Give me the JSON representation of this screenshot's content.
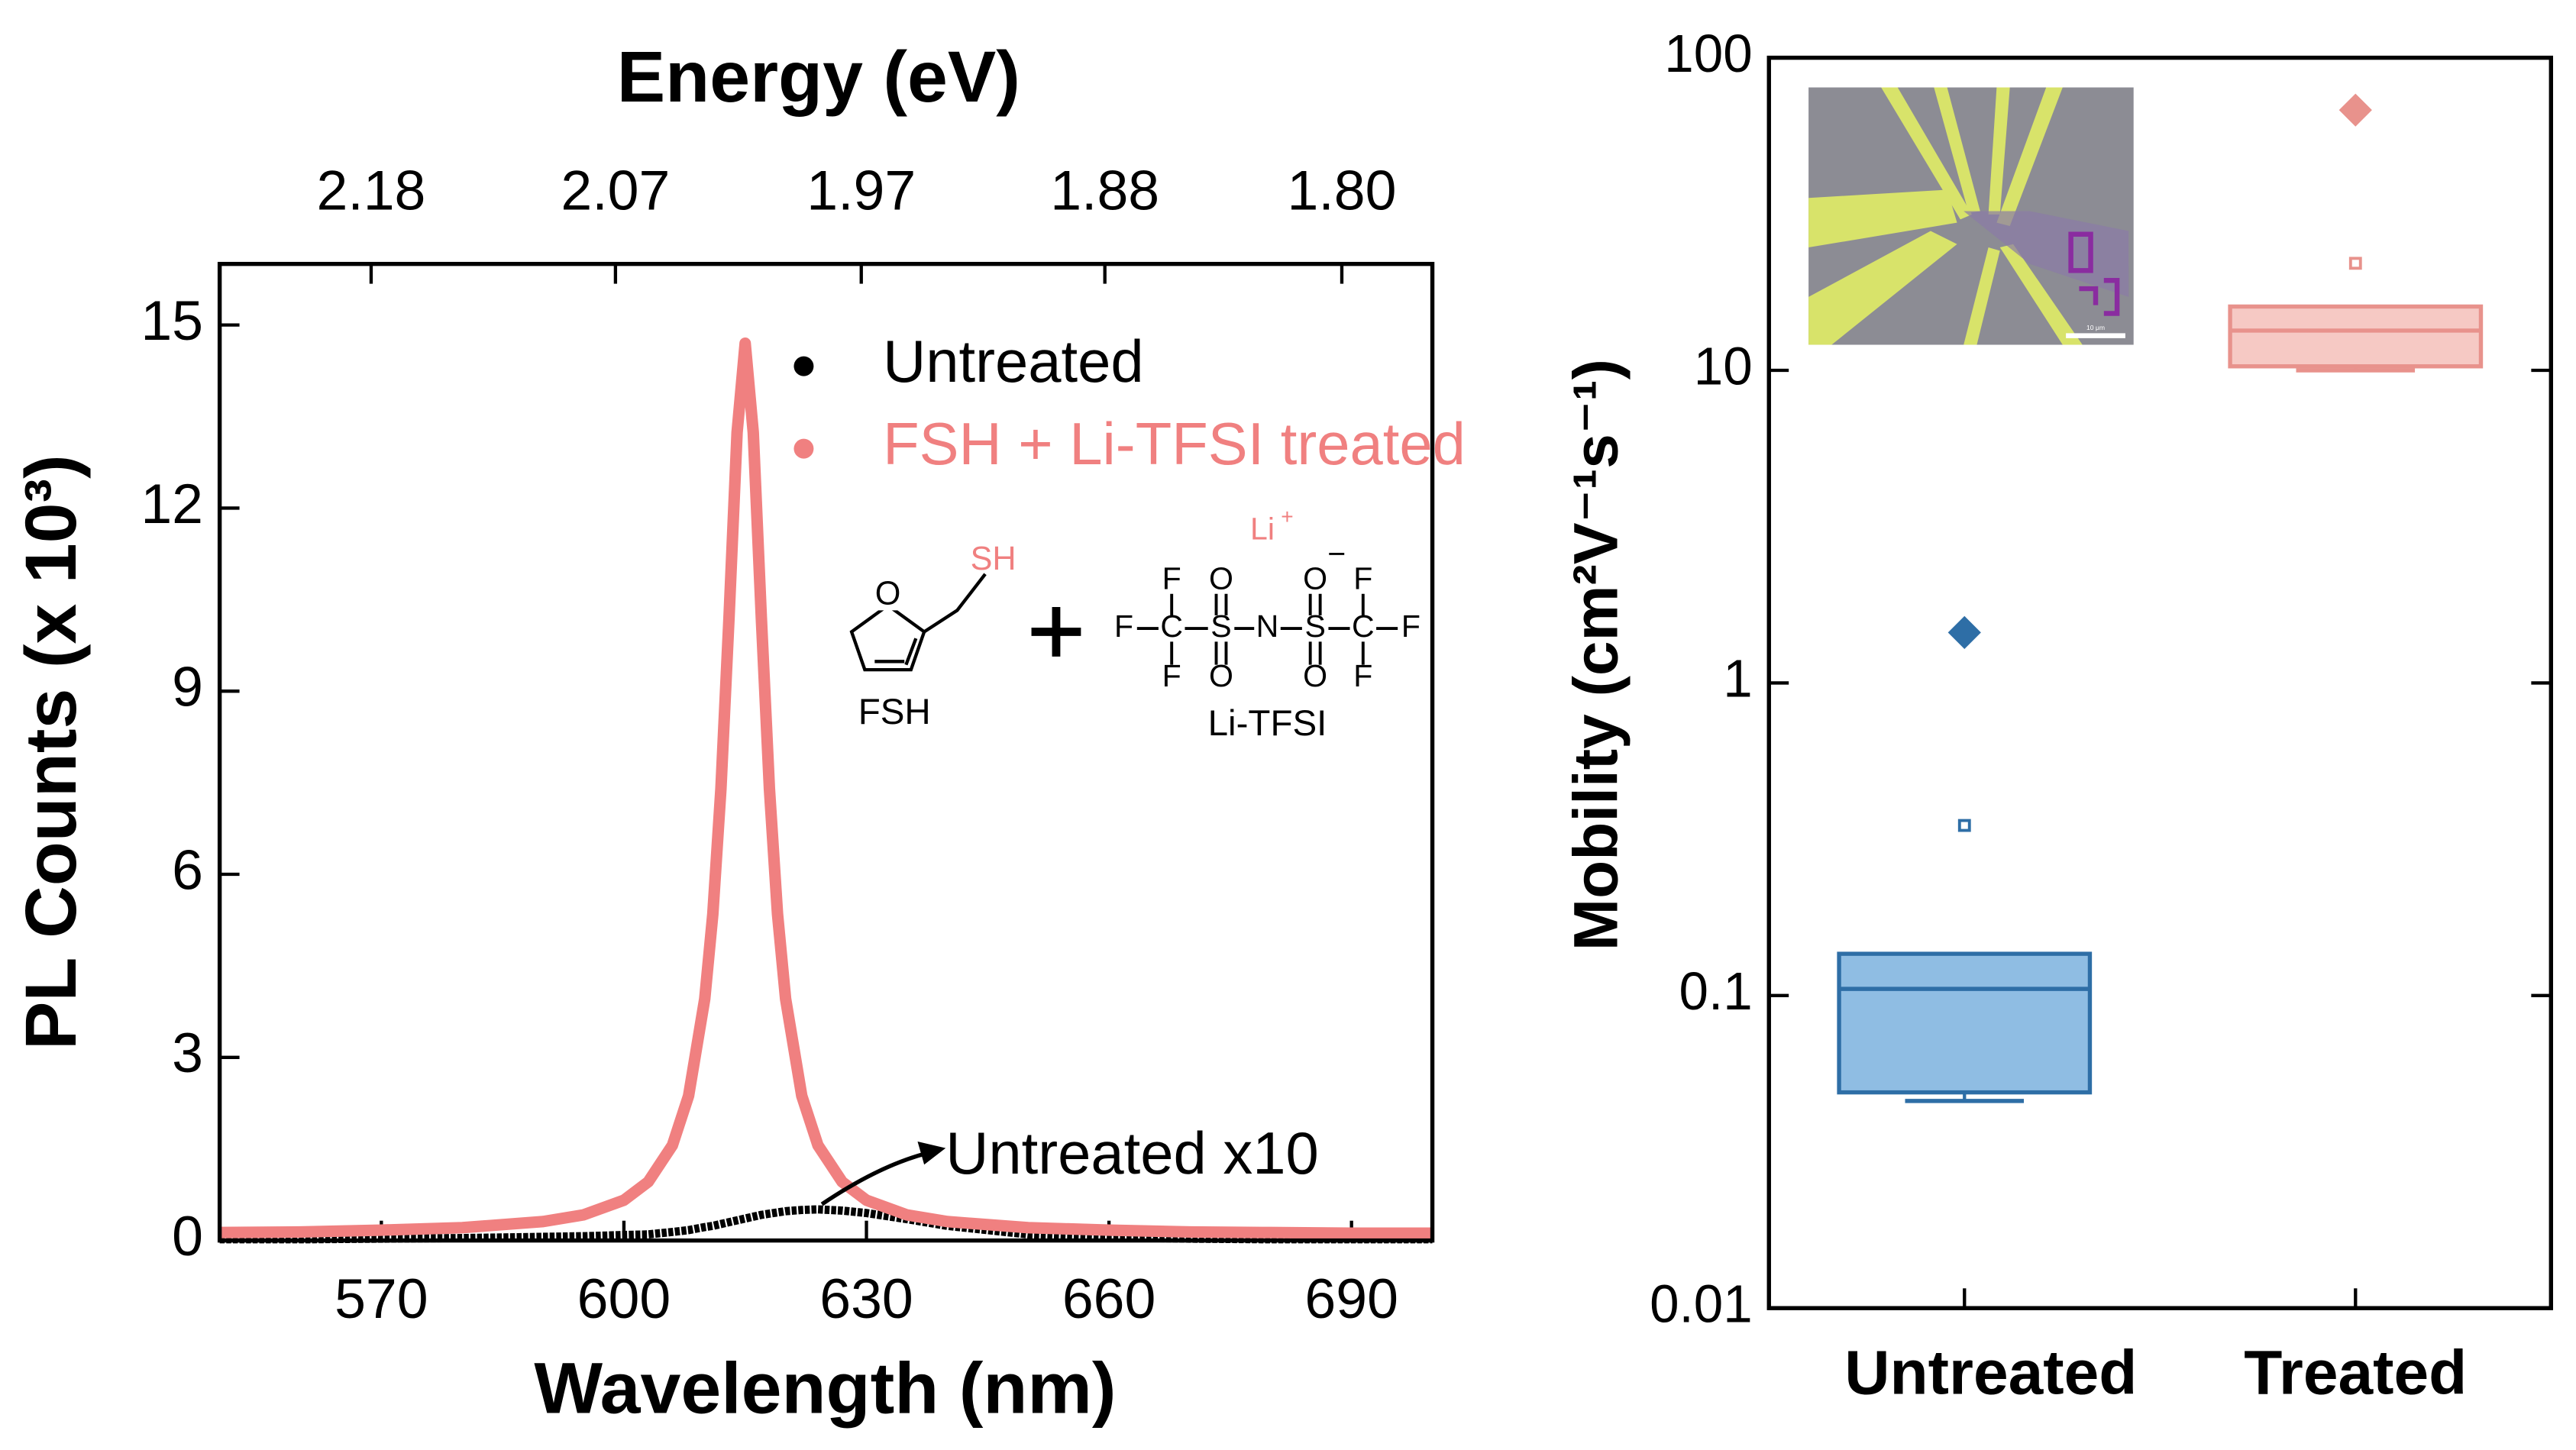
{
  "chart_data": [
    {
      "type": "line",
      "xlabel": "Wavelength (nm)",
      "ylabel": "PL Counts (x 10³)",
      "x2label": "Energy (eV)",
      "xlim": [
        550,
        700
      ],
      "xticks": [
        570,
        600,
        630,
        660,
        690
      ],
      "ylim": [
        0,
        16
      ],
      "yticks": [
        0,
        3,
        6,
        9,
        12,
        15
      ],
      "x2ticks": [
        2.18,
        2.07,
        1.97,
        1.88,
        1.8
      ],
      "x2ticks_labels": [
        "2.18",
        "2.07",
        "1.97",
        "1.88",
        "1.80"
      ],
      "x": [
        550,
        560,
        570,
        580,
        590,
        595,
        600,
        603,
        606,
        608,
        610,
        611,
        612,
        613,
        614,
        615,
        616,
        617,
        618,
        619,
        620,
        622,
        624,
        627,
        630,
        635,
        640,
        650,
        660,
        670,
        680,
        690,
        700
      ],
      "series": [
        {
          "name": "Untreated",
          "color": "#000000",
          "values": [
            0.02,
            0.02,
            0.03,
            0.04,
            0.06,
            0.07,
            0.09,
            0.1,
            0.14,
            0.17,
            0.22,
            0.24,
            0.27,
            0.3,
            0.33,
            0.36,
            0.39,
            0.42,
            0.44,
            0.46,
            0.48,
            0.5,
            0.51,
            0.49,
            0.45,
            0.35,
            0.24,
            0.1,
            0.05,
            0.03,
            0.02,
            0.02,
            0.02
          ]
        },
        {
          "name": "FSH + Li-TFSI treated",
          "color": "#f08080",
          "values": [
            0.13,
            0.14,
            0.17,
            0.21,
            0.31,
            0.42,
            0.66,
            0.96,
            1.56,
            2.37,
            3.96,
            5.35,
            7.4,
            10.2,
            13.24,
            14.7,
            13.24,
            10.2,
            7.4,
            5.35,
            3.96,
            2.37,
            1.56,
            0.96,
            0.66,
            0.42,
            0.31,
            0.21,
            0.17,
            0.14,
            0.13,
            0.12,
            0.12
          ]
        }
      ],
      "annotation": "Untreated x10",
      "fsh_label": "FSH",
      "fsh_atoms": [
        "O",
        "SH"
      ],
      "tfsi_label": "Li-TFSI",
      "tfsi_atoms": [
        "F",
        "O",
        "O",
        "F",
        "F",
        "C",
        "S",
        "N",
        "S",
        "C",
        "F",
        "F",
        "O",
        "O",
        "F",
        "Li",
        "+",
        "−"
      ]
    },
    {
      "type": "box",
      "ylabel": "Mobility (cm²V⁻¹s⁻¹)",
      "log_y": true,
      "ylim": [
        0.01,
        100
      ],
      "yticks": [
        0.01,
        0.1,
        1,
        10,
        100
      ],
      "categories": [
        "Untreated",
        "Treated"
      ],
      "boxes": [
        {
          "color": "#2e6ea6",
          "fill": "#8fbde3",
          "whislo": 0.046,
          "q1": 0.049,
          "med": 0.105,
          "q3": 0.136,
          "mean": 0.35,
          "max": 1.45
        },
        {
          "color": "#e8928c",
          "fill": "#f6c9c4",
          "whislo": 10.0,
          "q1": 10.3,
          "med": 13.4,
          "q3": 16,
          "mean": 22,
          "max": 68
        }
      ],
      "inset_scale_label": "10 μm"
    }
  ]
}
